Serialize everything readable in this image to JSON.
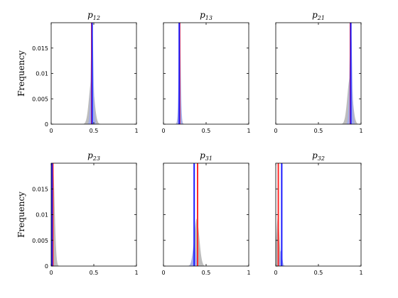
{
  "chart_data": [
    {
      "type": "area",
      "title": "p",
      "title_subscript": "12",
      "ylabel": "Frequency",
      "xlim": [
        0,
        1
      ],
      "ylim": [
        0,
        0.02
      ],
      "xticks": [
        "0",
        "0.5",
        "1"
      ],
      "yticks": [
        "0",
        "0.005",
        "0.01",
        "0.015"
      ],
      "grid": false,
      "distribution": {
        "mean": 0.475,
        "sd": 0.03,
        "peak": 0.009
      },
      "blue_dist": {
        "mean": 0.48,
        "sd": 0.015,
        "peak": 0.02
      },
      "red_line_x": 0.475,
      "blue_line_x": 0.48
    },
    {
      "type": "area",
      "title": "p",
      "title_subscript": "13",
      "ylabel": "",
      "xlim": [
        0,
        1
      ],
      "ylim": [
        0,
        0.02
      ],
      "xticks": [
        "0",
        "0.5",
        "1"
      ],
      "yticks": [],
      "grid": false,
      "distribution": {
        "mean": 0.19,
        "sd": 0.015,
        "peak": 0.0055
      },
      "blue_dist": {
        "mean": 0.19,
        "sd": 0.012,
        "peak": 0.02
      },
      "red_line_x": 0.19,
      "blue_line_x": 0.185
    },
    {
      "type": "area",
      "title": "p",
      "title_subscript": "21",
      "ylabel": "",
      "xlim": [
        0,
        1
      ],
      "ylim": [
        0,
        0.02
      ],
      "xticks": [
        "0",
        "0.5",
        "1"
      ],
      "yticks": [],
      "grid": false,
      "distribution": {
        "mean": 0.87,
        "sd": 0.03,
        "peak": 0.0092
      },
      "blue_dist": {
        "mean": 0.88,
        "sd": 0.015,
        "peak": 0.02
      },
      "red_line_x": 0.875,
      "blue_line_x": 0.88
    },
    {
      "type": "area",
      "title": "p",
      "title_subscript": "23",
      "ylabel": "Frequency",
      "xlim": [
        0,
        1
      ],
      "ylim": [
        0,
        0.02
      ],
      "xticks": [
        "0",
        "0.5",
        "1"
      ],
      "yticks": [
        "0",
        "0.005",
        "0.01",
        "0.015"
      ],
      "grid": false,
      "distribution": {
        "mean": 0.02,
        "sd": 0.02,
        "peak": 0.02
      },
      "blue_dist": {
        "mean": 0.01,
        "sd": 0.008,
        "peak": 0.02
      },
      "red_line_x": 0.02,
      "blue_line_x": 0.01
    },
    {
      "type": "area",
      "title": "p",
      "title_subscript": "31",
      "ylabel": "",
      "xlim": [
        0,
        1
      ],
      "ylim": [
        0,
        0.02
      ],
      "xticks": [
        "0",
        "0.5",
        "1"
      ],
      "yticks": [],
      "grid": false,
      "distribution": {
        "mean": 0.39,
        "sd": 0.03,
        "peak": 0.0092
      },
      "blue_dist": {
        "mean": 0.36,
        "sd": 0.02,
        "peak": 0.004
      },
      "red_line_x": 0.4,
      "blue_line_x": 0.36
    },
    {
      "type": "area",
      "title": "p",
      "title_subscript": "32",
      "ylabel": "",
      "xlim": [
        0,
        1
      ],
      "ylim": [
        0,
        0.02
      ],
      "xticks": [
        "0",
        "0.5",
        "1"
      ],
      "yticks": [],
      "grid": false,
      "distribution": {
        "mean": 0.025,
        "sd": 0.018,
        "peak": 0.0095
      },
      "blue_dist": {
        "mean": 0.06,
        "sd": 0.015,
        "peak": 0.003
      },
      "red_line_x": 0.03,
      "blue_line_x": 0.07
    }
  ],
  "colors": {
    "distribution_fill": "#bdbdbd",
    "blue_fill": "#9fa8f0",
    "red_line": "#ff2a2a",
    "blue_line": "#1a1aff",
    "axes": "#000000"
  }
}
